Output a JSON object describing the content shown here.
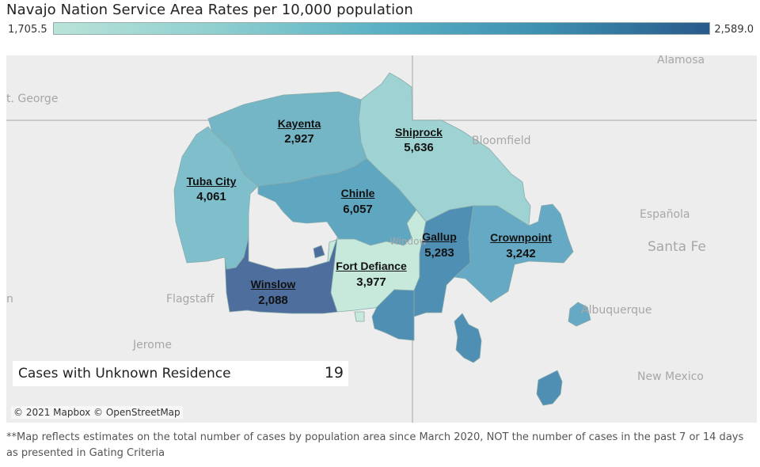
{
  "title": "Navajo Nation Service Area Rates per 10,000 population",
  "legend": {
    "min_label": "1,705.5",
    "max_label": "2,589.0",
    "min_color": "#b9e3d8",
    "max_color": "#2a5a8a"
  },
  "places": {
    "st_george": "t. George",
    "alamosa": "Alamosa",
    "bloomfield": "Bloomfield",
    "espanola": "Española",
    "santa_fe": "Santa Fe",
    "flagstaff": "Flagstaff",
    "albuquerque": "Albuquerque",
    "jerome": "Jerome",
    "new_mexico": "New Mexico",
    "left_edge": "n",
    "window_rock": "Window"
  },
  "regions": [
    {
      "id": "kayenta",
      "name": "Kayenta",
      "value": "2,927",
      "color": "#74b5c6"
    },
    {
      "id": "shiprock",
      "name": "Shiprock",
      "value": "5,636",
      "color": "#9fd3d3"
    },
    {
      "id": "tuba_city",
      "name": "Tuba City",
      "value": "4,061",
      "color": "#7fbfcc"
    },
    {
      "id": "chinle",
      "name": "Chinle",
      "value": "6,057",
      "color": "#5fa6c1"
    },
    {
      "id": "gallup",
      "name": "Gallup",
      "value": "5,283",
      "color": "#4f8fb3"
    },
    {
      "id": "crownpoint",
      "name": "Crownpoint",
      "value": "3,242",
      "color": "#66a9c4"
    },
    {
      "id": "fort_defiance",
      "name": "Fort Defiance",
      "value": "3,977",
      "color": "#c6e9dc"
    },
    {
      "id": "winslow",
      "name": "Winslow",
      "value": "2,088",
      "color": "#4e6f9d"
    }
  ],
  "unknown_residence": {
    "label": "Cases with Unknown Residence",
    "value": "19"
  },
  "attribution": "© 2021 Mapbox © OpenStreetMap",
  "footnote": "**Map reflects estimates on the total number of cases by population area since March 2020, NOT the number of cases in the past 7 or 14 days as presented in Gating Criteria"
}
